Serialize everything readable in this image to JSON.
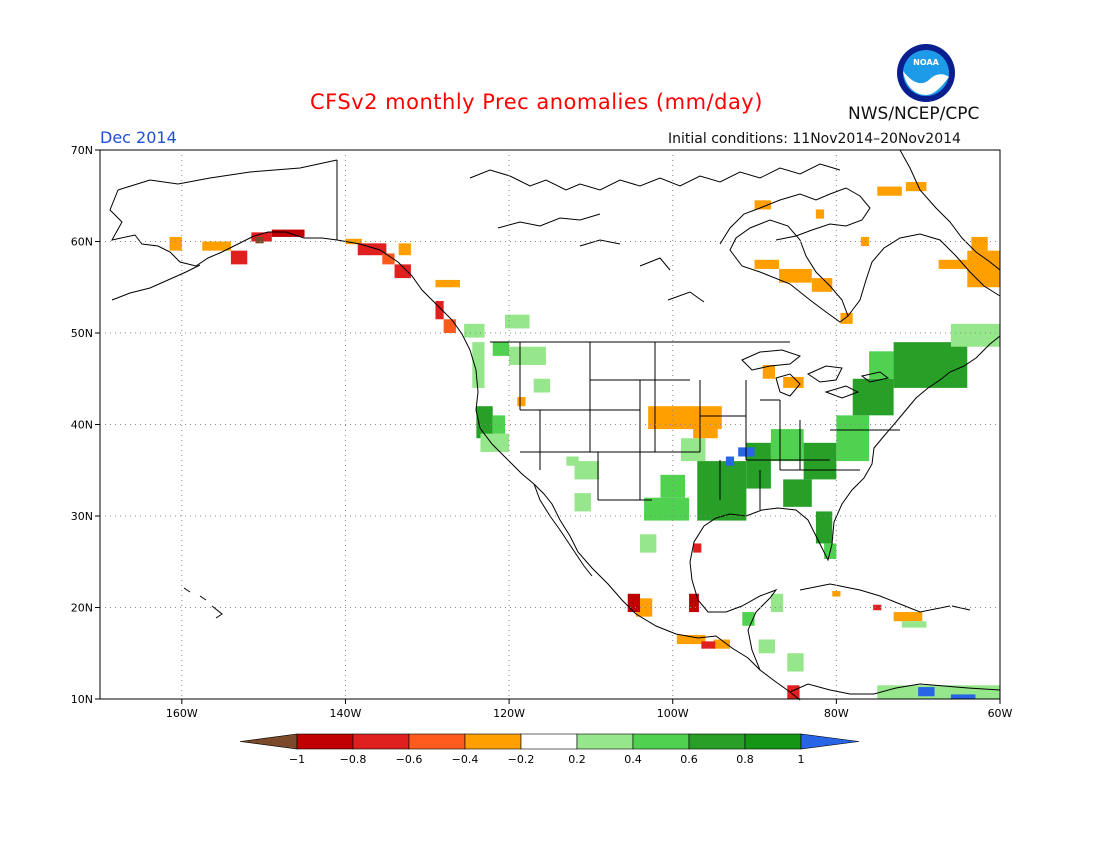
{
  "title": "CFSv2 monthly Prec anomalies (mm/day)",
  "valid_month": "Dec 2014",
  "initial_conditions": "Initial conditions: 11Nov2014–20Nov2014",
  "agency": "NWS/NCEP/CPC",
  "logo": {
    "text": "NOAA",
    "icon": "noaa-logo",
    "colors": {
      "outer": "#0a1f8f",
      "inner": "#1e9be8",
      "bird": "#ffffff"
    }
  },
  "map": {
    "extent": {
      "lon": [
        -170,
        -60
      ],
      "lat": [
        10,
        70
      ]
    },
    "lat_ticks": [
      {
        "value": 70,
        "label": "70N"
      },
      {
        "value": 60,
        "label": "60N"
      },
      {
        "value": 50,
        "label": "50N"
      },
      {
        "value": 40,
        "label": "40N"
      },
      {
        "value": 30,
        "label": "30N"
      },
      {
        "value": 20,
        "label": "20N"
      },
      {
        "value": 10,
        "label": "10N"
      }
    ],
    "lon_ticks": [
      {
        "value": -160,
        "label": "160W"
      },
      {
        "value": -140,
        "label": "140W"
      },
      {
        "value": -120,
        "label": "120W"
      },
      {
        "value": -100,
        "label": "100W"
      },
      {
        "value": -80,
        "label": "80W"
      },
      {
        "value": -60,
        "label": "60W"
      }
    ],
    "grid": true
  },
  "colorbar": {
    "labels": [
      "−1",
      "−0.8",
      "−0.6",
      "−0.4",
      "−0.2",
      "0.2",
      "0.4",
      "0.6",
      "0.8",
      "1"
    ],
    "colors": [
      "#7a4a2a",
      "#c00000",
      "#e0201e",
      "#ff5a1e",
      "#ffa000",
      "#ffffff",
      "#96e68c",
      "#50d250",
      "#28a028",
      "#149614",
      "#2864e6"
    ]
  },
  "anomaly_patches": [
    {
      "lon": [
        -161.5,
        -160
      ],
      "lat": [
        59,
        60.5
      ],
      "bin": -0.3
    },
    {
      "lon": [
        -157.5,
        -154
      ],
      "lat": [
        59,
        60
      ],
      "bin": -0.3
    },
    {
      "lon": [
        -154,
        -152
      ],
      "lat": [
        57.5,
        59
      ],
      "bin": -0.7
    },
    {
      "lon": [
        -151.5,
        -149
      ],
      "lat": [
        60,
        61
      ],
      "bin": -0.7
    },
    {
      "lon": [
        -149,
        -145
      ],
      "lat": [
        60.5,
        61.3
      ],
      "bin": -0.9
    },
    {
      "lon": [
        -151,
        -150
      ],
      "lat": [
        59.8,
        60.5
      ],
      "bin": -1.0
    },
    {
      "lon": [
        -140,
        -138
      ],
      "lat": [
        59.7,
        60.3
      ],
      "bin": -0.3
    },
    {
      "lon": [
        -138.5,
        -135
      ],
      "lat": [
        58.5,
        59.8
      ],
      "bin": -0.7
    },
    {
      "lon": [
        -135.5,
        -134
      ],
      "lat": [
        57.5,
        58.7
      ],
      "bin": -0.5
    },
    {
      "lon": [
        -134,
        -132
      ],
      "lat": [
        56,
        57.5
      ],
      "bin": -0.7
    },
    {
      "lon": [
        -133.5,
        -132
      ],
      "lat": [
        58.5,
        59.8
      ],
      "bin": -0.3
    },
    {
      "lon": [
        -129,
        -126
      ],
      "lat": [
        55,
        55.8
      ],
      "bin": -0.3
    },
    {
      "lon": [
        -129,
        -128
      ],
      "lat": [
        51.5,
        53.5
      ],
      "bin": -0.7
    },
    {
      "lon": [
        -128,
        -126.5
      ],
      "lat": [
        50,
        51.5
      ],
      "bin": -0.5
    },
    {
      "lon": [
        -120.5,
        -117.5
      ],
      "lat": [
        50.5,
        52
      ],
      "bin": 0.3
    },
    {
      "lon": [
        -125.5,
        -123
      ],
      "lat": [
        49.5,
        51
      ],
      "bin": 0.3
    },
    {
      "lon": [
        -124.5,
        -123
      ],
      "lat": [
        44,
        49
      ],
      "bin": 0.3
    },
    {
      "lon": [
        -120,
        -115.5
      ],
      "lat": [
        46.5,
        48.5
      ],
      "bin": 0.3
    },
    {
      "lon": [
        -122,
        -120
      ],
      "lat": [
        47.5,
        49
      ],
      "bin": 0.5
    },
    {
      "lon": [
        -124,
        -122
      ],
      "lat": [
        38.5,
        42
      ],
      "bin": 0.6
    },
    {
      "lon": [
        -123.5,
        -120
      ],
      "lat": [
        37,
        39
      ],
      "bin": 0.3
    },
    {
      "lon": [
        -122,
        -120.5
      ],
      "lat": [
        39,
        41
      ],
      "bin": 0.5
    },
    {
      "lon": [
        -117,
        -115
      ],
      "lat": [
        43.5,
        45
      ],
      "bin": 0.3
    },
    {
      "lon": [
        -119,
        -118
      ],
      "lat": [
        42,
        43
      ],
      "bin": -0.3
    },
    {
      "lon": [
        -112,
        -109
      ],
      "lat": [
        34,
        36
      ],
      "bin": 0.3
    },
    {
      "lon": [
        -113,
        -111.5
      ],
      "lat": [
        35.5,
        36.5
      ],
      "bin": 0.3
    },
    {
      "lon": [
        -112,
        -110
      ],
      "lat": [
        30.5,
        32.5
      ],
      "bin": 0.3
    },
    {
      "lon": [
        -104,
        -102
      ],
      "lat": [
        26,
        28
      ],
      "bin": 0.3
    },
    {
      "lon": [
        -101.5,
        -98.5
      ],
      "lat": [
        32,
        34.5
      ],
      "bin": 0.4
    },
    {
      "lon": [
        -99,
        -96
      ],
      "lat": [
        36,
        38.5
      ],
      "bin": 0.3
    },
    {
      "lon": [
        -103.5,
        -98
      ],
      "lat": [
        29.5,
        32
      ],
      "bin": 0.4
    },
    {
      "lon": [
        -97,
        -91
      ],
      "lat": [
        29.5,
        36
      ],
      "bin": 0.6
    },
    {
      "lon": [
        -91,
        -88
      ],
      "lat": [
        33,
        38
      ],
      "bin": 0.7
    },
    {
      "lon": [
        -88,
        -84
      ],
      "lat": [
        36,
        39.5
      ],
      "bin": 0.5
    },
    {
      "lon": [
        -84,
        -80
      ],
      "lat": [
        34,
        38
      ],
      "bin": 0.6
    },
    {
      "lon": [
        -86.5,
        -83
      ],
      "lat": [
        31,
        34
      ],
      "bin": 0.6
    },
    {
      "lon": [
        -82.5,
        -80.5
      ],
      "lat": [
        27,
        30.5
      ],
      "bin": 0.7
    },
    {
      "lon": [
        -81.5,
        -80
      ],
      "lat": [
        25.3,
        27
      ],
      "bin": 0.5
    },
    {
      "lon": [
        -80,
        -76
      ],
      "lat": [
        36,
        41
      ],
      "bin": 0.5
    },
    {
      "lon": [
        -78,
        -73
      ],
      "lat": [
        41,
        45
      ],
      "bin": 0.6
    },
    {
      "lon": [
        -76,
        -68
      ],
      "lat": [
        45,
        48
      ],
      "bin": 0.5
    },
    {
      "lon": [
        -73,
        -64
      ],
      "lat": [
        44,
        49
      ],
      "bin": 0.7
    },
    {
      "lon": [
        -66,
        -60
      ],
      "lat": [
        48.5,
        51
      ],
      "bin": 0.3
    },
    {
      "lon": [
        -92,
        -90
      ],
      "lat": [
        36.5,
        37.5
      ],
      "bin": 1.0
    },
    {
      "lon": [
        -93.5,
        -92.5
      ],
      "lat": [
        35.5,
        36.5
      ],
      "bin": 1.0
    },
    {
      "lon": [
        -103,
        -94
      ],
      "lat": [
        39.5,
        42
      ],
      "bin": -0.3
    },
    {
      "lon": [
        -97.5,
        -94.5
      ],
      "lat": [
        38.5,
        40.5
      ],
      "bin": -0.3
    },
    {
      "lon": [
        -89,
        -87.5
      ],
      "lat": [
        45,
        46.5
      ],
      "bin": -0.3
    },
    {
      "lon": [
        -86.5,
        -84
      ],
      "lat": [
        44,
        45.2
      ],
      "bin": -0.3
    },
    {
      "lon": [
        -104.5,
        -102.5
      ],
      "lat": [
        19,
        21
      ],
      "bin": -0.3
    },
    {
      "lon": [
        -105.5,
        -104
      ],
      "lat": [
        19.5,
        21.5
      ],
      "bin": -0.8
    },
    {
      "lon": [
        -98,
        -96.8
      ],
      "lat": [
        19.5,
        21.5
      ],
      "bin": -0.8
    },
    {
      "lon": [
        -97.5,
        -96.5
      ],
      "lat": [
        26,
        27
      ],
      "bin": -0.6
    },
    {
      "lon": [
        -99.5,
        -96
      ],
      "lat": [
        16,
        17
      ],
      "bin": -0.3
    },
    {
      "lon": [
        -95,
        -93
      ],
      "lat": [
        15.5,
        16.5
      ],
      "bin": -0.3
    },
    {
      "lon": [
        -96.5,
        -94.8
      ],
      "lat": [
        15.5,
        16.3
      ],
      "bin": -0.7
    },
    {
      "lon": [
        -89.5,
        -87.5
      ],
      "lat": [
        15,
        16.5
      ],
      "bin": 0.3
    },
    {
      "lon": [
        -88,
        -86.5
      ],
      "lat": [
        19.5,
        21.5
      ],
      "bin": 0.3
    },
    {
      "lon": [
        -91.5,
        -90
      ],
      "lat": [
        18,
        19.5
      ],
      "bin": 0.4
    },
    {
      "lon": [
        -86,
        -84
      ],
      "lat": [
        13,
        15
      ],
      "bin": 0.3
    },
    {
      "lon": [
        -86,
        -84.5
      ],
      "lat": [
        10,
        11.5
      ],
      "bin": -0.6
    },
    {
      "lon": [
        -73,
        -69.5
      ],
      "lat": [
        18.5,
        19.5
      ],
      "bin": -0.3
    },
    {
      "lon": [
        -72,
        -69
      ],
      "lat": [
        17.8,
        18.5
      ],
      "bin": 0.3
    },
    {
      "lon": [
        -75.5,
        -74.5
      ],
      "lat": [
        19.7,
        20.3
      ],
      "bin": -0.6
    },
    {
      "lon": [
        -80.5,
        -79.5
      ],
      "lat": [
        21.2,
        21.8
      ],
      "bin": -0.3
    },
    {
      "lon": [
        -75,
        -60
      ],
      "lat": [
        10,
        11.5
      ],
      "bin": 0.3
    },
    {
      "lon": [
        -70,
        -68
      ],
      "lat": [
        10.3,
        11.3
      ],
      "bin": 1.0
    },
    {
      "lon": [
        -66,
        -63
      ],
      "lat": [
        10,
        10.5
      ],
      "bin": 1.0
    },
    {
      "lon": [
        -90,
        -87
      ],
      "lat": [
        57,
        58
      ],
      "bin": -0.3
    },
    {
      "lon": [
        -87,
        -83
      ],
      "lat": [
        55.5,
        57
      ],
      "bin": -0.3
    },
    {
      "lon": [
        -83,
        -80.5
      ],
      "lat": [
        54.5,
        56
      ],
      "bin": -0.3
    },
    {
      "lon": [
        -77,
        -76
      ],
      "lat": [
        59.5,
        60.5
      ],
      "bin": -0.3
    },
    {
      "lon": [
        -82.5,
        -81.5
      ],
      "lat": [
        62.5,
        63.5
      ],
      "bin": -0.3
    },
    {
      "lon": [
        -79.5,
        -78
      ],
      "lat": [
        51,
        52.2
      ],
      "bin": -0.3
    },
    {
      "lon": [
        -75,
        -72
      ],
      "lat": [
        65,
        66
      ],
      "bin": -0.3
    },
    {
      "lon": [
        -71.5,
        -69
      ],
      "lat": [
        65.5,
        66.5
      ],
      "bin": -0.3
    },
    {
      "lon": [
        -64,
        -60
      ],
      "lat": [
        55,
        59
      ],
      "bin": -0.3
    },
    {
      "lon": [
        -67.5,
        -64
      ],
      "lat": [
        57,
        58
      ],
      "bin": -0.3
    },
    {
      "lon": [
        -63.5,
        -61.5
      ],
      "lat": [
        59,
        60.5
      ],
      "bin": -0.3
    },
    {
      "lon": [
        -90,
        -88
      ],
      "lat": [
        63.5,
        64.5
      ],
      "bin": -0.3
    }
  ]
}
